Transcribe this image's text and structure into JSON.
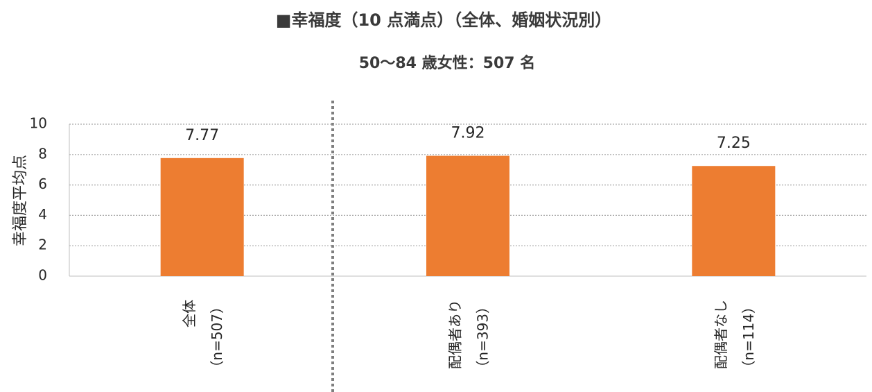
{
  "chart_data": {
    "type": "bar",
    "title": "■幸福度（10 点満点）（全体、婚姻状況別）",
    "subtitle": "50～84 歳女性：507 名",
    "y_label": "幸福度平均点",
    "categories": [
      [
        "全体",
        "（n=507）"
      ],
      [
        "配偶者あり",
        "（n=393）"
      ],
      [
        "配偶者なし",
        "（n=114）"
      ]
    ],
    "values": [
      7.77,
      7.92,
      7.25
    ],
    "color": "#ed7d31",
    "ylim": [
      0,
      10
    ],
    "yticks": [
      0,
      2,
      4,
      6,
      8,
      10
    ],
    "grid": true
  }
}
